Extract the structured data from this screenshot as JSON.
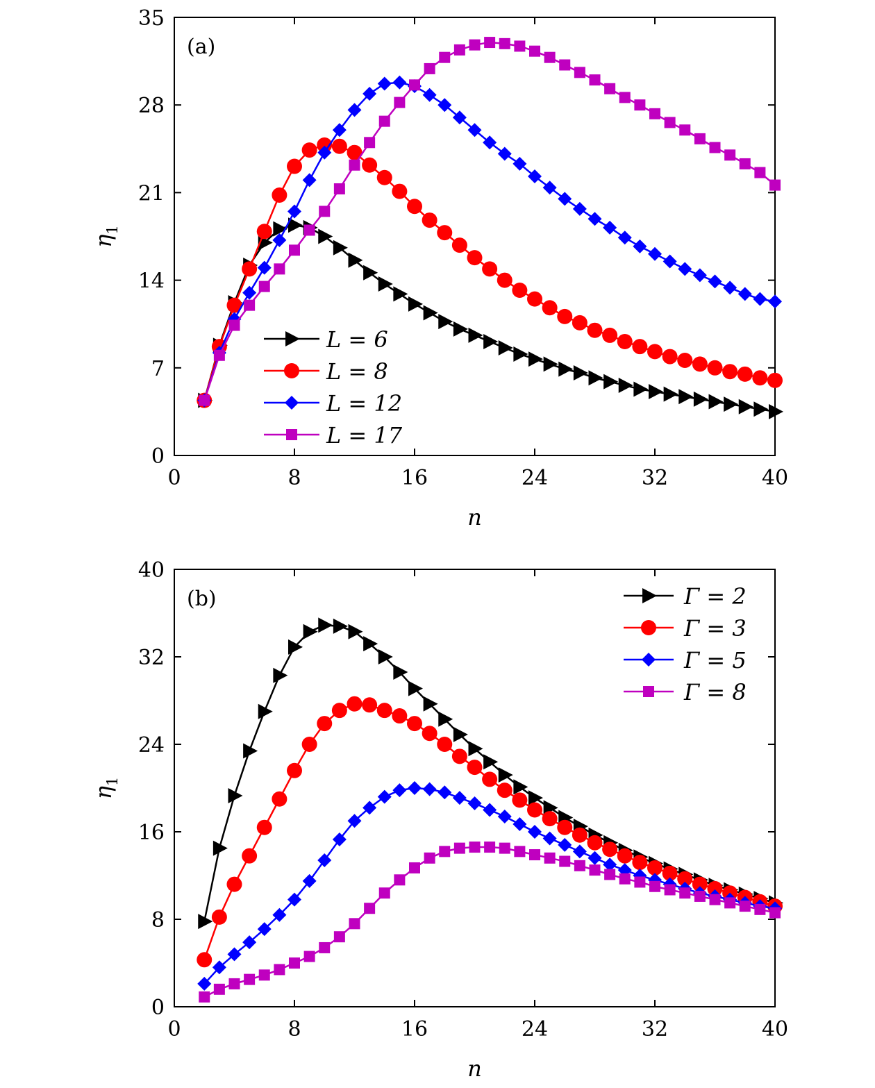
{
  "chart_data": [
    {
      "type": "line",
      "panel_label": "(a)",
      "xlabel": "n",
      "ylabel": "η",
      "ylabel_sub": "1",
      "xlim": [
        0,
        40
      ],
      "ylim": [
        0,
        35
      ],
      "xticks": [
        0,
        8,
        16,
        24,
        32,
        40
      ],
      "xtick_labels": [
        "0",
        "8",
        "16",
        "24",
        "32",
        "40"
      ],
      "yticks": [
        0,
        7,
        14,
        21,
        28,
        35
      ],
      "ytick_labels": [
        "0",
        "7",
        "14",
        "21",
        "28",
        "35"
      ],
      "legend_position": "lower-left",
      "x": [
        2,
        3,
        4,
        5,
        6,
        7,
        8,
        9,
        10,
        11,
        12,
        13,
        14,
        15,
        16,
        17,
        18,
        19,
        20,
        21,
        22,
        23,
        24,
        25,
        26,
        27,
        28,
        29,
        30,
        31,
        32,
        33,
        34,
        35,
        36,
        37,
        38,
        39,
        40
      ],
      "series": [
        {
          "name": "L = 6",
          "legend_var": "L",
          "legend_value": "6",
          "color": "#000000",
          "marker": "triangle-right",
          "values": [
            4.4,
            8.8,
            12.2,
            15.2,
            17.0,
            18.1,
            18.4,
            18.2,
            17.5,
            16.6,
            15.6,
            14.6,
            13.7,
            12.9,
            12.1,
            11.4,
            10.7,
            10.1,
            9.6,
            9.1,
            8.6,
            8.1,
            7.7,
            7.3,
            6.9,
            6.6,
            6.2,
            5.9,
            5.6,
            5.3,
            5.1,
            4.9,
            4.7,
            4.5,
            4.3,
            4.1,
            3.9,
            3.7,
            3.5
          ]
        },
        {
          "name": "L = 8",
          "legend_var": "L",
          "legend_value": "8",
          "color": "#ff0000",
          "marker": "circle",
          "values": [
            4.4,
            8.7,
            12.0,
            14.9,
            17.9,
            20.8,
            23.1,
            24.4,
            24.8,
            24.7,
            24.2,
            23.2,
            22.2,
            21.1,
            19.9,
            18.8,
            17.8,
            16.8,
            15.8,
            14.9,
            14.0,
            13.2,
            12.5,
            11.8,
            11.1,
            10.6,
            10.0,
            9.6,
            9.1,
            8.7,
            8.3,
            7.9,
            7.6,
            7.3,
            7.0,
            6.7,
            6.5,
            6.2,
            6.0
          ]
        },
        {
          "name": "L = 12",
          "legend_var": "L",
          "legend_value": "12",
          "color": "#0000ff",
          "marker": "diamond",
          "values": [
            4.4,
            8.2,
            10.9,
            13.0,
            15.0,
            17.2,
            19.5,
            22.0,
            24.2,
            26.0,
            27.6,
            28.9,
            29.7,
            29.8,
            29.5,
            28.8,
            28.0,
            27.0,
            26.0,
            25.0,
            24.1,
            23.3,
            22.3,
            21.4,
            20.5,
            19.7,
            18.9,
            18.2,
            17.4,
            16.7,
            16.1,
            15.5,
            14.9,
            14.4,
            13.9,
            13.4,
            12.9,
            12.5,
            12.3
          ]
        },
        {
          "name": "L = 17",
          "legend_var": "L",
          "legend_value": "17",
          "color": "#bf00bf",
          "marker": "square",
          "values": [
            4.4,
            8.0,
            10.4,
            12.0,
            13.5,
            14.9,
            16.4,
            18.0,
            19.5,
            21.3,
            23.2,
            25.0,
            26.7,
            28.2,
            29.6,
            30.9,
            31.8,
            32.4,
            32.8,
            33.0,
            32.9,
            32.7,
            32.3,
            31.8,
            31.2,
            30.6,
            30.0,
            29.3,
            28.6,
            28.0,
            27.3,
            26.6,
            26.0,
            25.3,
            24.6,
            24.0,
            23.3,
            22.6,
            21.6
          ]
        }
      ]
    },
    {
      "type": "line",
      "panel_label": "(b)",
      "xlabel": "n",
      "ylabel": "η",
      "ylabel_sub": "1",
      "xlim": [
        0,
        40
      ],
      "ylim": [
        0,
        40
      ],
      "xticks": [
        0,
        8,
        16,
        24,
        32,
        40
      ],
      "xtick_labels": [
        "0",
        "8",
        "16",
        "24",
        "32",
        "40"
      ],
      "yticks": [
        0,
        8,
        16,
        24,
        32,
        40
      ],
      "ytick_labels": [
        "0",
        "8",
        "16",
        "24",
        "32",
        "40"
      ],
      "legend_position": "upper-right",
      "x": [
        2,
        3,
        4,
        5,
        6,
        7,
        8,
        9,
        10,
        11,
        12,
        13,
        14,
        15,
        16,
        17,
        18,
        19,
        20,
        21,
        22,
        23,
        24,
        25,
        26,
        27,
        28,
        29,
        30,
        31,
        32,
        33,
        34,
        35,
        36,
        37,
        38,
        39,
        40
      ],
      "series": [
        {
          "name": "Γ = 2",
          "legend_var": "Γ",
          "legend_value": "2",
          "color": "#000000",
          "marker": "triangle-right",
          "values": [
            7.8,
            14.5,
            19.3,
            23.4,
            27.0,
            30.3,
            32.9,
            34.3,
            34.9,
            34.8,
            34.3,
            33.2,
            32.0,
            30.6,
            29.1,
            27.7,
            26.3,
            24.9,
            23.6,
            22.4,
            21.2,
            20.1,
            19.1,
            18.2,
            17.3,
            16.5,
            15.7,
            15.0,
            14.3,
            13.7,
            13.1,
            12.6,
            12.1,
            11.6,
            11.1,
            10.7,
            10.3,
            9.9,
            9.5
          ]
        },
        {
          "name": "Γ = 3",
          "legend_var": "Γ",
          "legend_value": "3",
          "color": "#ff0000",
          "marker": "circle",
          "values": [
            4.3,
            8.2,
            11.2,
            13.8,
            16.4,
            19.0,
            21.6,
            24.0,
            25.9,
            27.1,
            27.7,
            27.6,
            27.1,
            26.6,
            25.9,
            25.0,
            24.0,
            22.9,
            21.9,
            20.8,
            19.8,
            18.9,
            18.0,
            17.2,
            16.4,
            15.7,
            15.0,
            14.4,
            13.8,
            13.2,
            12.7,
            12.2,
            11.7,
            11.2,
            10.8,
            10.4,
            10.0,
            9.6,
            9.2
          ]
        },
        {
          "name": "Γ = 5",
          "legend_var": "Γ",
          "legend_value": "5",
          "color": "#0000ff",
          "marker": "diamond",
          "values": [
            2.1,
            3.6,
            4.8,
            5.9,
            7.1,
            8.4,
            9.8,
            11.5,
            13.4,
            15.3,
            17.0,
            18.2,
            19.2,
            19.8,
            20.0,
            19.9,
            19.6,
            19.1,
            18.6,
            18.0,
            17.4,
            16.7,
            16.0,
            15.4,
            14.8,
            14.2,
            13.6,
            13.0,
            12.5,
            12.0,
            11.6,
            11.2,
            10.8,
            10.4,
            10.1,
            9.8,
            9.5,
            9.2,
            9.0
          ]
        },
        {
          "name": "Γ = 8",
          "legend_var": "Γ",
          "legend_value": "8",
          "color": "#bf00bf",
          "marker": "square",
          "values": [
            0.9,
            1.6,
            2.1,
            2.5,
            2.9,
            3.4,
            4.0,
            4.6,
            5.4,
            6.4,
            7.6,
            9.0,
            10.4,
            11.6,
            12.7,
            13.6,
            14.2,
            14.5,
            14.6,
            14.6,
            14.5,
            14.2,
            13.9,
            13.6,
            13.3,
            12.9,
            12.5,
            12.1,
            11.7,
            11.4,
            11.0,
            10.7,
            10.4,
            10.1,
            9.8,
            9.5,
            9.2,
            8.9,
            8.6
          ]
        }
      ]
    }
  ]
}
